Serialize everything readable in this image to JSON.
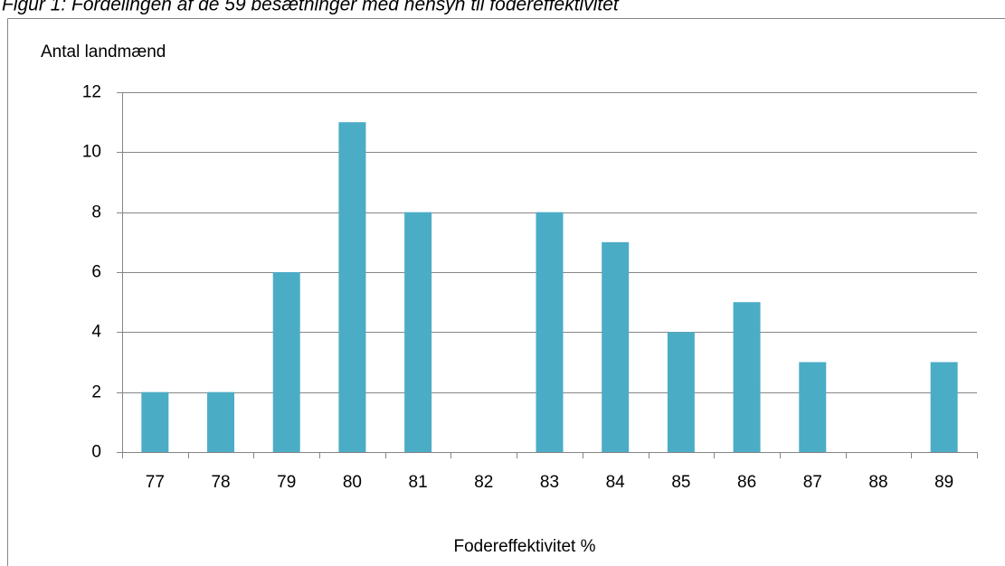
{
  "chart_data": {
    "type": "bar",
    "title": "Figur 1: Fordelingen af de 59 besætninger med hensyn til fodereffektivitet",
    "y_label": "Antal landmænd",
    "x_label": "Fodereffektivitet %",
    "categories": [
      "77",
      "78",
      "79",
      "80",
      "81",
      "82",
      "83",
      "84",
      "85",
      "86",
      "87",
      "88",
      "89"
    ],
    "values": [
      2,
      2,
      6,
      11,
      8,
      0,
      8,
      7,
      4,
      5,
      3,
      0,
      3
    ],
    "color": "#4bacc6",
    "ylim": [
      0,
      12
    ],
    "yticks": [
      0,
      2,
      4,
      6,
      8,
      10,
      12
    ],
    "grid": true
  }
}
